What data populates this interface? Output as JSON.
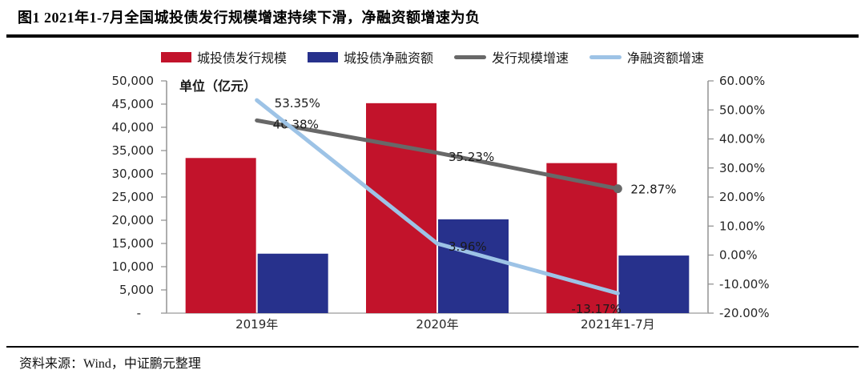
{
  "page": {
    "title": "图1  2021年1-7月全国城投债发行规模增速持续下滑，净融资额增速为负",
    "source": "资料来源：Wind，中证鹏元整理"
  },
  "chart_data": {
    "type": "bar+line-combo",
    "title": "2021年1-7月全国城投债发行规模增速持续下滑，净融资额增速为负",
    "unit_label": "单位（亿元）",
    "categories": [
      "2019年",
      "2020年",
      "2021年1-7月"
    ],
    "bar_series": [
      {
        "name": "城投债发行规模",
        "color": "#C2132B",
        "values": [
          33400,
          45200,
          32300
        ]
      },
      {
        "name": "城投债净融资额",
        "color": "#27318C",
        "values": [
          12800,
          20200,
          12400
        ]
      }
    ],
    "line_series": [
      {
        "name": "发行规模增速",
        "color": "#686868",
        "values": [
          46.38,
          35.23,
          22.87
        ],
        "point_labels": [
          "46.38%",
          "35.23%",
          "22.87%"
        ],
        "end_marker": true
      },
      {
        "name": "净融资额增速",
        "color": "#9DC3E6",
        "values": [
          53.35,
          3.96,
          -13.17
        ],
        "point_labels": [
          "53.35%",
          "3.96%",
          "-13.17%"
        ],
        "end_marker": false
      }
    ],
    "left_axis": {
      "min": 0,
      "max": 50000,
      "step": 5000,
      "tick_labels": [
        "50,000",
        "45,000",
        "40,000",
        "35,000",
        "30,000",
        "25,000",
        "20,000",
        "15,000",
        "10,000",
        "5,000",
        "-"
      ]
    },
    "right_axis": {
      "min": -20,
      "max": 60,
      "step": 10,
      "tick_labels": [
        "60.00%",
        "50.00%",
        "40.00%",
        "30.00%",
        "20.00%",
        "10.00%",
        "0.00%",
        "-10.00%",
        "-20.00%"
      ]
    },
    "legend_position": "top",
    "grid": false,
    "colors": {
      "axis_line": "#8C8C8C",
      "baseline": "#ACACAC",
      "tick_text": "#262626",
      "label_text": "#1a1a1a"
    }
  }
}
